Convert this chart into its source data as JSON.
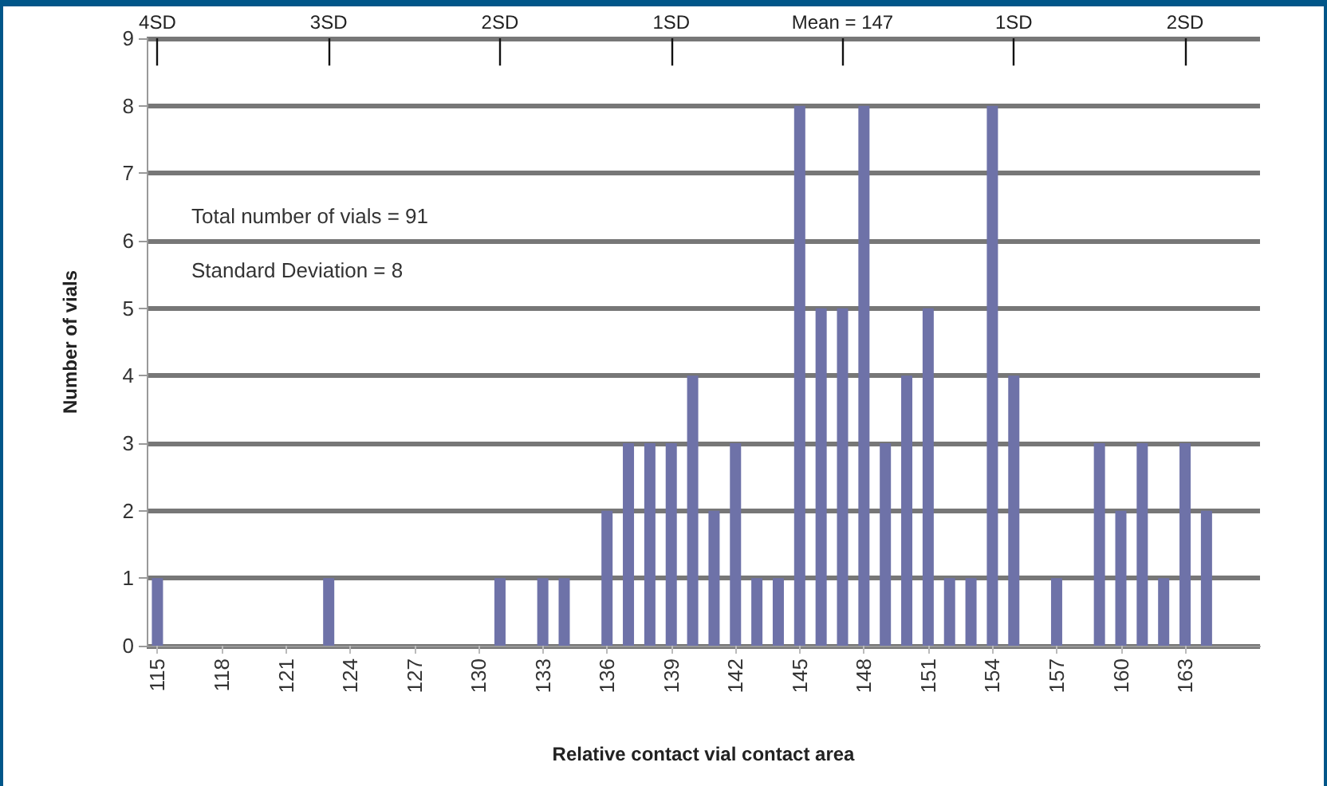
{
  "chart_data": {
    "type": "bar",
    "xlabel": "Relative contact vial contact area",
    "ylabel": "Number of vials",
    "x": [
      115,
      116,
      117,
      118,
      119,
      120,
      121,
      122,
      123,
      124,
      125,
      126,
      127,
      128,
      129,
      130,
      131,
      132,
      133,
      134,
      135,
      136,
      137,
      138,
      139,
      140,
      141,
      142,
      143,
      144,
      145,
      146,
      147,
      148,
      149,
      150,
      151,
      152,
      153,
      154,
      155,
      156,
      157,
      158,
      159,
      160,
      161,
      162,
      163,
      164
    ],
    "values": [
      1,
      0,
      0,
      0,
      0,
      0,
      0,
      0,
      1,
      0,
      0,
      0,
      0,
      0,
      0,
      0,
      1,
      0,
      1,
      1,
      0,
      2,
      3,
      3,
      3,
      4,
      2,
      3,
      1,
      1,
      8,
      5,
      5,
      8,
      3,
      4,
      5,
      1,
      1,
      8,
      4,
      0,
      1,
      0,
      3,
      2,
      3,
      1,
      3,
      2
    ],
    "color": "#6e72a8",
    "xlim": [
      114.5,
      166.5
    ],
    "xticks": [
      115,
      118,
      121,
      124,
      127,
      130,
      133,
      136,
      139,
      142,
      145,
      148,
      151,
      154,
      157,
      160,
      163
    ],
    "ylim": [
      0,
      9
    ],
    "yticks": [
      0,
      1,
      2,
      3,
      4,
      5,
      6,
      7,
      8,
      9
    ],
    "grid": "y",
    "ref_lines": [
      {
        "axis": "x",
        "value": 115,
        "label": "4SD"
      },
      {
        "axis": "x",
        "value": 123,
        "label": "3SD"
      },
      {
        "axis": "x",
        "value": 131,
        "label": "2SD"
      },
      {
        "axis": "x",
        "value": 139,
        "label": "1SD"
      },
      {
        "axis": "x",
        "value": 147,
        "label": "Mean = 147"
      },
      {
        "axis": "x",
        "value": 155,
        "label": "1SD"
      },
      {
        "axis": "x",
        "value": 163,
        "label": "2SD"
      }
    ],
    "annotations": [
      "Total number of vials = 91",
      "Standard Deviation = 8"
    ]
  }
}
